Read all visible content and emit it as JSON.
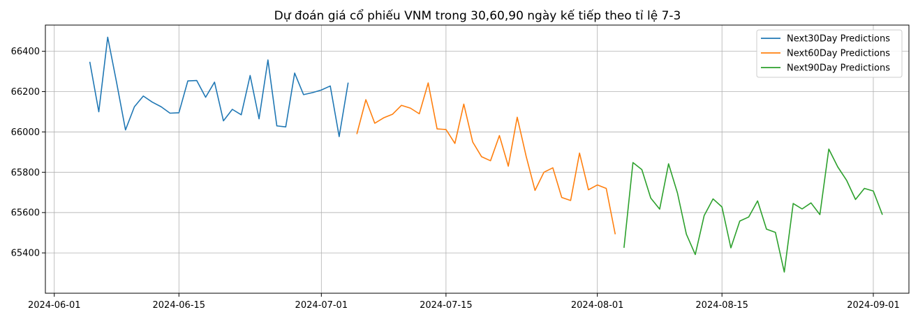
{
  "chart_data": {
    "type": "line",
    "title": "Dự đoán giá cổ phiếu VNM trong 30,60,90 ngày kế tiếp theo tỉ lệ 7-3",
    "xlabel": "",
    "ylabel": "",
    "grid": true,
    "legend_position": "top-right",
    "xlim": [
      "2024-05-31",
      "2024-09-05"
    ],
    "ylim": [
      65200,
      66530
    ],
    "x_ticks": [
      "2024-06-01",
      "2024-06-15",
      "2024-07-01",
      "2024-07-15",
      "2024-08-01",
      "2024-08-15",
      "2024-09-01"
    ],
    "y_ticks": [
      65400,
      65600,
      65800,
      66000,
      66200,
      66400
    ],
    "series": [
      {
        "name": "Next30Day Predictions",
        "color": "#1f77b4",
        "start_date": "2024-06-05",
        "values": [
          66345,
          66100,
          66470,
          66245,
          66010,
          66125,
          66178,
          66148,
          66125,
          66093,
          66095,
          66253,
          66255,
          66172,
          66247,
          66055,
          66112,
          66085,
          66280,
          66065,
          66357,
          66030,
          66025,
          66292,
          66185,
          66195,
          66208,
          66228,
          65977,
          66242
        ]
      },
      {
        "name": "Next60Day Predictions",
        "color": "#ff7f0e",
        "start_date": "2024-07-05",
        "values": [
          65992,
          66160,
          66043,
          66070,
          66088,
          66132,
          66118,
          66090,
          66243,
          66015,
          66012,
          65943,
          66138,
          65950,
          65877,
          65857,
          65982,
          65830,
          66073,
          65880,
          65710,
          65800,
          65822,
          65675,
          65660,
          65895,
          65713,
          65737,
          65720,
          65495
        ]
      },
      {
        "name": "Next90Day Predictions",
        "color": "#2ca02c",
        "start_date": "2024-08-04",
        "values": [
          65428,
          65848,
          65813,
          65672,
          65617,
          65842,
          65697,
          65493,
          65392,
          65585,
          65668,
          65628,
          65425,
          65558,
          65578,
          65658,
          65518,
          65502,
          65305,
          65645,
          65618,
          65648,
          65590,
          65915,
          65827,
          65760,
          65665,
          65720,
          65707,
          65592
        ]
      }
    ]
  }
}
